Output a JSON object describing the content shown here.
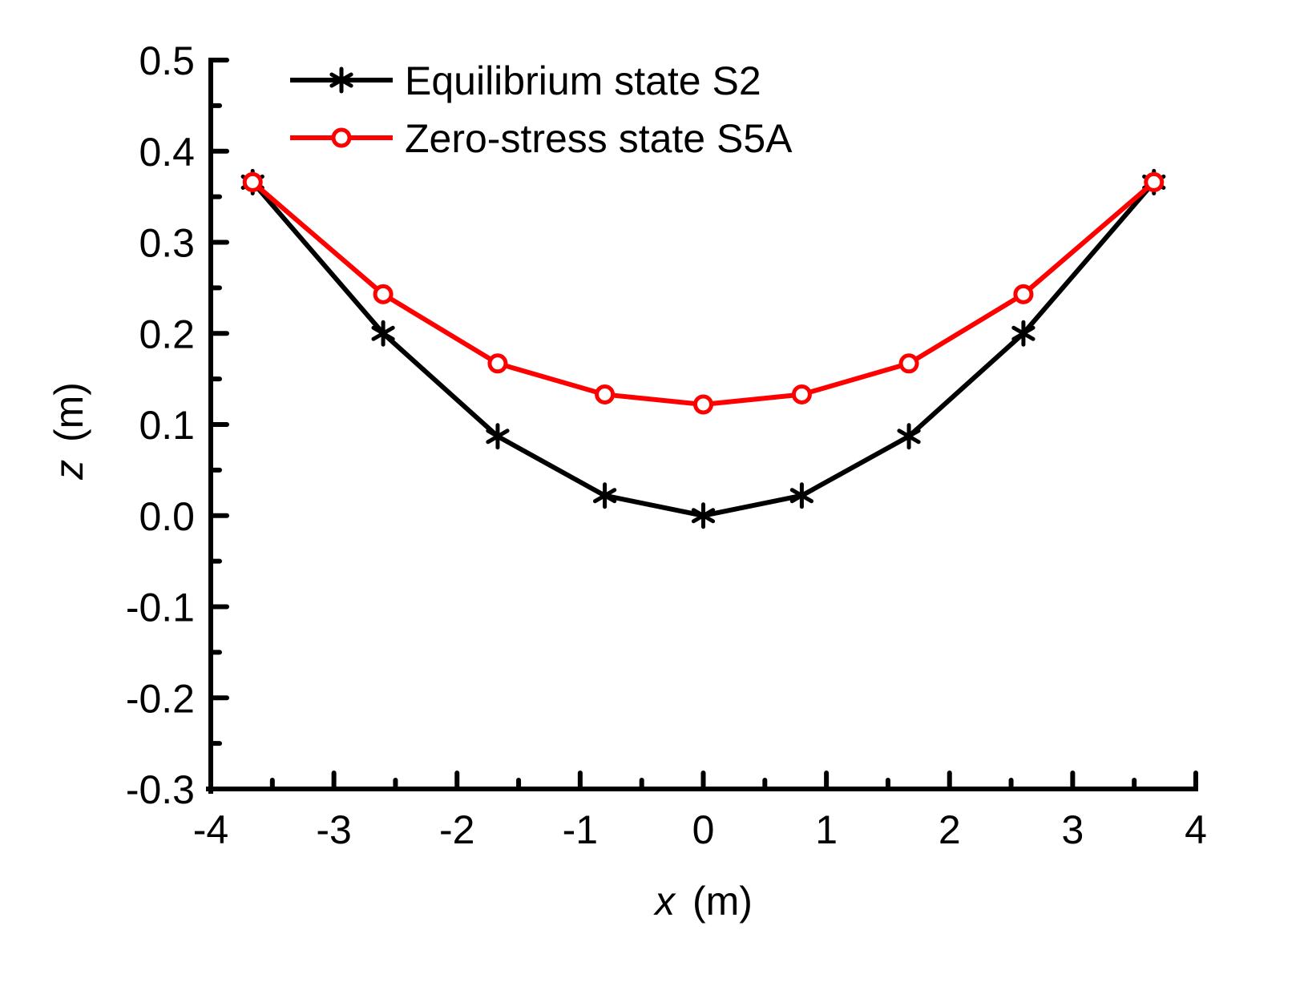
{
  "chart_data": {
    "type": "line",
    "title": "",
    "xlabel": {
      "var": "x",
      "unit": "(m)"
    },
    "ylabel": {
      "var": "z",
      "unit": "(m)"
    },
    "xlim": [
      -4,
      4
    ],
    "ylim": [
      -0.3,
      0.5
    ],
    "xticks": [
      -4,
      -3,
      -2,
      -1,
      0,
      1,
      2,
      3,
      4
    ],
    "xtick_labels": [
      "-4",
      "-3",
      "-2",
      "-1",
      "0",
      "1",
      "2",
      "3",
      "4"
    ],
    "yticks": [
      -0.3,
      -0.2,
      -0.1,
      0.0,
      0.1,
      0.2,
      0.3,
      0.4,
      0.5
    ],
    "ytick_labels": [
      "-0.3",
      "-0.2",
      "-0.1",
      "0.0",
      "0.1",
      "0.2",
      "0.3",
      "0.4",
      "0.5"
    ],
    "grid": false,
    "legend_position": "top-left",
    "series": [
      {
        "name": "Equilibrium state S2",
        "color": "#000000",
        "marker": "asterisk",
        "x": [
          -3.66,
          -2.6,
          -1.67,
          -0.8,
          0.0,
          0.8,
          1.67,
          2.6,
          3.66
        ],
        "y": [
          0.366,
          0.2,
          0.087,
          0.022,
          0.0,
          0.022,
          0.087,
          0.2,
          0.366
        ]
      },
      {
        "name": "Zero-stress state S5A",
        "color": "#ff0000",
        "marker": "open-circle",
        "x": [
          -3.66,
          -2.6,
          -1.67,
          -0.8,
          0.0,
          0.8,
          1.67,
          2.6,
          3.66
        ],
        "y": [
          0.366,
          0.243,
          0.167,
          0.133,
          0.122,
          0.133,
          0.167,
          0.243,
          0.366
        ]
      }
    ]
  }
}
